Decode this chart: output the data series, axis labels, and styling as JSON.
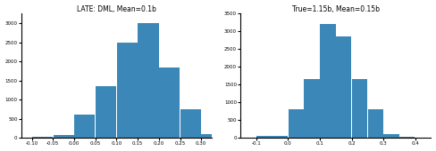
{
  "left_title": "LATE: DML, Mean=0.1b",
  "right_title": "True=1.15b, Mean=0.15b",
  "bar_color": "#3a87b8",
  "left_bins": [
    -0.1,
    -0.05,
    0.0,
    0.05,
    0.1,
    0.15,
    0.2,
    0.25,
    0.3
  ],
  "left_counts": [
    20,
    80,
    600,
    1350,
    2500,
    3000,
    1850,
    750,
    100
  ],
  "right_bins": [
    -0.1,
    0.0,
    0.05,
    0.1,
    0.15,
    0.2,
    0.25,
    0.3,
    0.35
  ],
  "right_counts": [
    50,
    800,
    1650,
    3200,
    2850,
    1650,
    800,
    100,
    20
  ],
  "left_xlim": [
    -0.125,
    0.325
  ],
  "right_xlim": [
    -0.15,
    0.45
  ],
  "left_ylim": [
    0,
    3250
  ],
  "right_ylim": [
    0,
    3500
  ],
  "left_xticks": [
    -0.1,
    -0.05,
    0.0,
    0.05,
    0.1,
    0.15,
    0.2,
    0.25,
    0.3
  ],
  "right_xticks": [
    -0.1,
    0.0,
    0.1,
    0.2,
    0.3,
    0.4
  ],
  "left_yticks": [
    0,
    500,
    1000,
    1500,
    2000,
    2500,
    3000
  ],
  "right_yticks": [
    0,
    500,
    1000,
    1500,
    2000,
    2500,
    3000,
    3500
  ],
  "figsize": [
    4.88,
    1.7
  ],
  "dpi": 100
}
